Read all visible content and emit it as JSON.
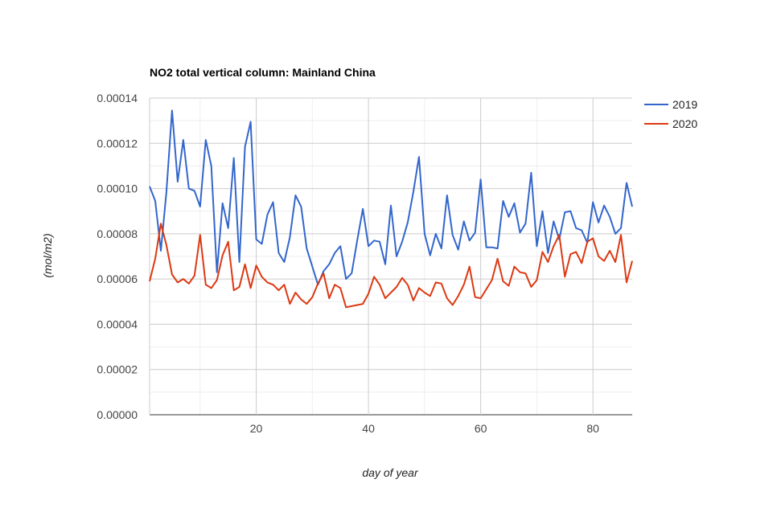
{
  "chart_data": {
    "type": "line",
    "title": "NO2 total vertical column: Mainland China",
    "xlabel": "day of year",
    "ylabel": "(mol/m2)",
    "xlim": [
      1,
      87
    ],
    "ylim": [
      0,
      0.00014
    ],
    "x_ticks": [
      20,
      40,
      60,
      80
    ],
    "y_ticks": [
      "0.00000",
      "0.00002",
      "0.00004",
      "0.00006",
      "0.00008",
      "0.00010",
      "0.00012",
      "0.00014"
    ],
    "grid": true,
    "legend_position": "right",
    "x": [
      1,
      2,
      3,
      4,
      5,
      6,
      7,
      8,
      9,
      10,
      11,
      12,
      13,
      14,
      15,
      16,
      17,
      18,
      19,
      20,
      21,
      22,
      23,
      24,
      25,
      26,
      27,
      28,
      29,
      30,
      31,
      32,
      33,
      34,
      35,
      36,
      37,
      38,
      39,
      40,
      41,
      42,
      43,
      44,
      45,
      46,
      47,
      48,
      49,
      50,
      51,
      52,
      53,
      54,
      55,
      56,
      57,
      58,
      59,
      60,
      61,
      62,
      63,
      64,
      65,
      66,
      67,
      68,
      69,
      70,
      71,
      72,
      73,
      74,
      75,
      76,
      77,
      78,
      79,
      80,
      81,
      82,
      83,
      84,
      85,
      86,
      87
    ],
    "series": [
      {
        "name": "2019",
        "color": "#3366cc",
        "values": [
          0.000101,
          9.45e-05,
          7.25e-05,
          9.85e-05,
          0.0001345,
          0.000103,
          0.0001215,
          0.0001,
          9.9e-05,
          9.2e-05,
          0.0001215,
          0.00011,
          6.3e-05,
          9.35e-05,
          8.25e-05,
          0.0001135,
          6.75e-05,
          0.0001185,
          0.0001295,
          7.75e-05,
          7.55e-05,
          8.85e-05,
          9.4e-05,
          7.15e-05,
          6.75e-05,
          7.85e-05,
          9.7e-05,
          9.2e-05,
          7.35e-05,
          6.55e-05,
          5.75e-05,
          6.35e-05,
          6.65e-05,
          7.15e-05,
          7.45e-05,
          6e-05,
          6.25e-05,
          7.7e-05,
          9.1e-05,
          7.45e-05,
          7.7e-05,
          7.65e-05,
          6.65e-05,
          9.25e-05,
          7e-05,
          7.65e-05,
          8.5e-05,
          9.85e-05,
          0.000114,
          8e-05,
          7.05e-05,
          8e-05,
          7.35e-05,
          9.7e-05,
          7.95e-05,
          7.3e-05,
          8.55e-05,
          7.7e-05,
          8.05e-05,
          0.000104,
          7.4e-05,
          7.4e-05,
          7.35e-05,
          9.45e-05,
          8.75e-05,
          9.35e-05,
          8.05e-05,
          8.45e-05,
          0.000107,
          7.45e-05,
          9e-05,
          7.15e-05,
          8.55e-05,
          7.75e-05,
          8.95e-05,
          9e-05,
          8.25e-05,
          8.15e-05,
          7.6e-05,
          9.4e-05,
          8.5e-05,
          9.25e-05,
          8.75e-05,
          8e-05,
          8.25e-05,
          0.0001025,
          9.2e-05
        ]
      },
      {
        "name": "2020",
        "color": "#dc3912",
        "values": [
          5.9e-05,
          6.9e-05,
          8.45e-05,
          7.5e-05,
          6.2e-05,
          5.85e-05,
          6e-05,
          5.8e-05,
          6.15e-05,
          7.95e-05,
          5.75e-05,
          5.6e-05,
          5.95e-05,
          7.05e-05,
          7.65e-05,
          5.5e-05,
          5.65e-05,
          6.65e-05,
          5.6e-05,
          6.6e-05,
          6.1e-05,
          5.85e-05,
          5.75e-05,
          5.5e-05,
          5.75e-05,
          4.9e-05,
          5.4e-05,
          5.1e-05,
          4.9e-05,
          5.2e-05,
          5.8e-05,
          6.25e-05,
          5.15e-05,
          5.75e-05,
          5.6e-05,
          4.75e-05,
          4.8e-05,
          4.85e-05,
          4.9e-05,
          5.35e-05,
          6.1e-05,
          5.75e-05,
          5.15e-05,
          5.4e-05,
          5.65e-05,
          6.05e-05,
          5.75e-05,
          5.05e-05,
          5.6e-05,
          5.4e-05,
          5.25e-05,
          5.85e-05,
          5.8e-05,
          5.15e-05,
          4.85e-05,
          5.25e-05,
          5.75e-05,
          6.55e-05,
          5.2e-05,
          5.15e-05,
          5.55e-05,
          5.95e-05,
          6.9e-05,
          5.9e-05,
          5.7e-05,
          6.55e-05,
          6.3e-05,
          6.25e-05,
          5.65e-05,
          5.95e-05,
          7.2e-05,
          6.75e-05,
          7.45e-05,
          7.95e-05,
          6.1e-05,
          7.1e-05,
          7.2e-05,
          6.7e-05,
          7.65e-05,
          7.8e-05,
          7e-05,
          6.8e-05,
          7.25e-05,
          6.75e-05,
          7.95e-05,
          5.85e-05,
          6.8e-05
        ]
      }
    ]
  }
}
